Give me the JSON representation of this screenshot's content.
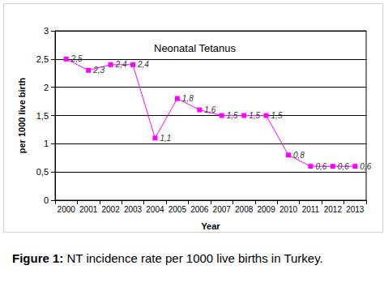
{
  "chart_data": {
    "type": "line",
    "title": "Neonatal Tetanus",
    "caption": "Figure 1: NT incidence rate per 1000 live births in Turkey.",
    "x_label": "Year",
    "y_label": "per 1000 live birth",
    "categories": [
      "2000",
      "2001",
      "2002",
      "2003",
      "2004",
      "2005",
      "2006",
      "2007",
      "2008",
      "2009",
      "2010",
      "2011",
      "2012",
      "2013"
    ],
    "values": [
      2.5,
      2.3,
      2.4,
      2.4,
      1.1,
      1.8,
      1.6,
      1.5,
      1.5,
      1.5,
      0.8,
      0.6,
      0.6,
      0.6
    ],
    "value_labels": [
      "2,5",
      "2,3",
      "2,4",
      "2,4",
      "1,1",
      "1,8",
      "1,6",
      "1,5",
      "1,5",
      "1,5",
      "0,8",
      "0,6",
      "0,6",
      "0,6"
    ],
    "color": "#ff00ff",
    "marker": "square",
    "line_style": "solid",
    "ylim": [
      0,
      3
    ],
    "yticks": [
      0,
      {
        "value": 0.5,
        "label": "0,5"
      },
      1,
      {
        "value": 1.5,
        "label": "1,5"
      },
      2,
      {
        "value": 2.5,
        "label": "2,5"
      },
      3
    ],
    "grid": true,
    "data_labels": true
  }
}
